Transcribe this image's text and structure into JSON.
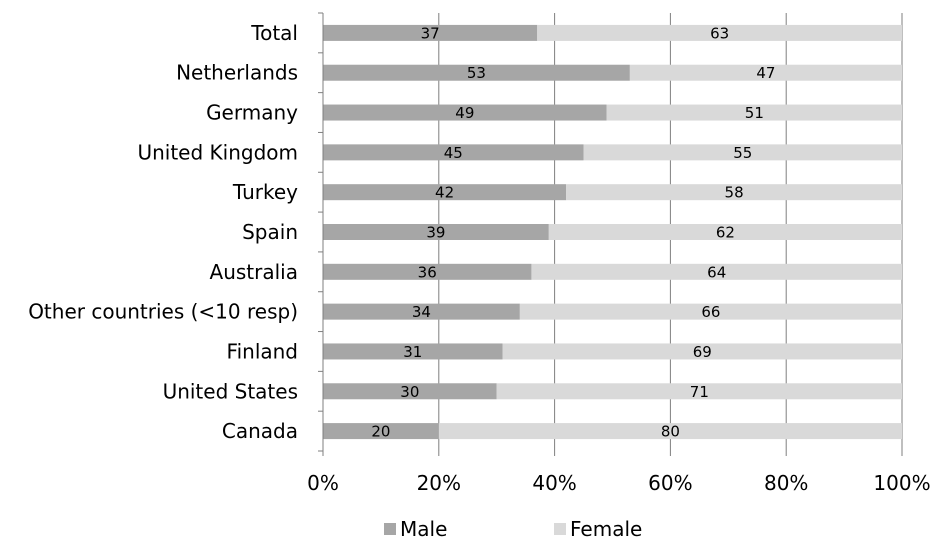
{
  "chart_data": {
    "type": "bar",
    "orientation": "horizontal",
    "stacked": true,
    "categories": [
      "Total",
      "Netherlands",
      "Germany",
      "United Kingdom",
      "Turkey",
      "Spain",
      "Australia",
      "Other countries (<10 resp)",
      "Finland",
      "United States",
      "Canada"
    ],
    "series": [
      {
        "name": "Male",
        "color": "#a6a6a6",
        "values": [
          37,
          53,
          49,
          45,
          42,
          39,
          36,
          34,
          31,
          30,
          20
        ]
      },
      {
        "name": "Female",
        "color": "#d9d9d9",
        "values": [
          63,
          47,
          51,
          55,
          58,
          62,
          64,
          66,
          69,
          71,
          80
        ]
      }
    ],
    "xlim": [
      0,
      100
    ],
    "xticks": [
      "0%",
      "20%",
      "40%",
      "60%",
      "80%",
      "100%"
    ],
    "grid": true,
    "legend_position": "bottom",
    "title": "",
    "xlabel": "",
    "ylabel": ""
  }
}
